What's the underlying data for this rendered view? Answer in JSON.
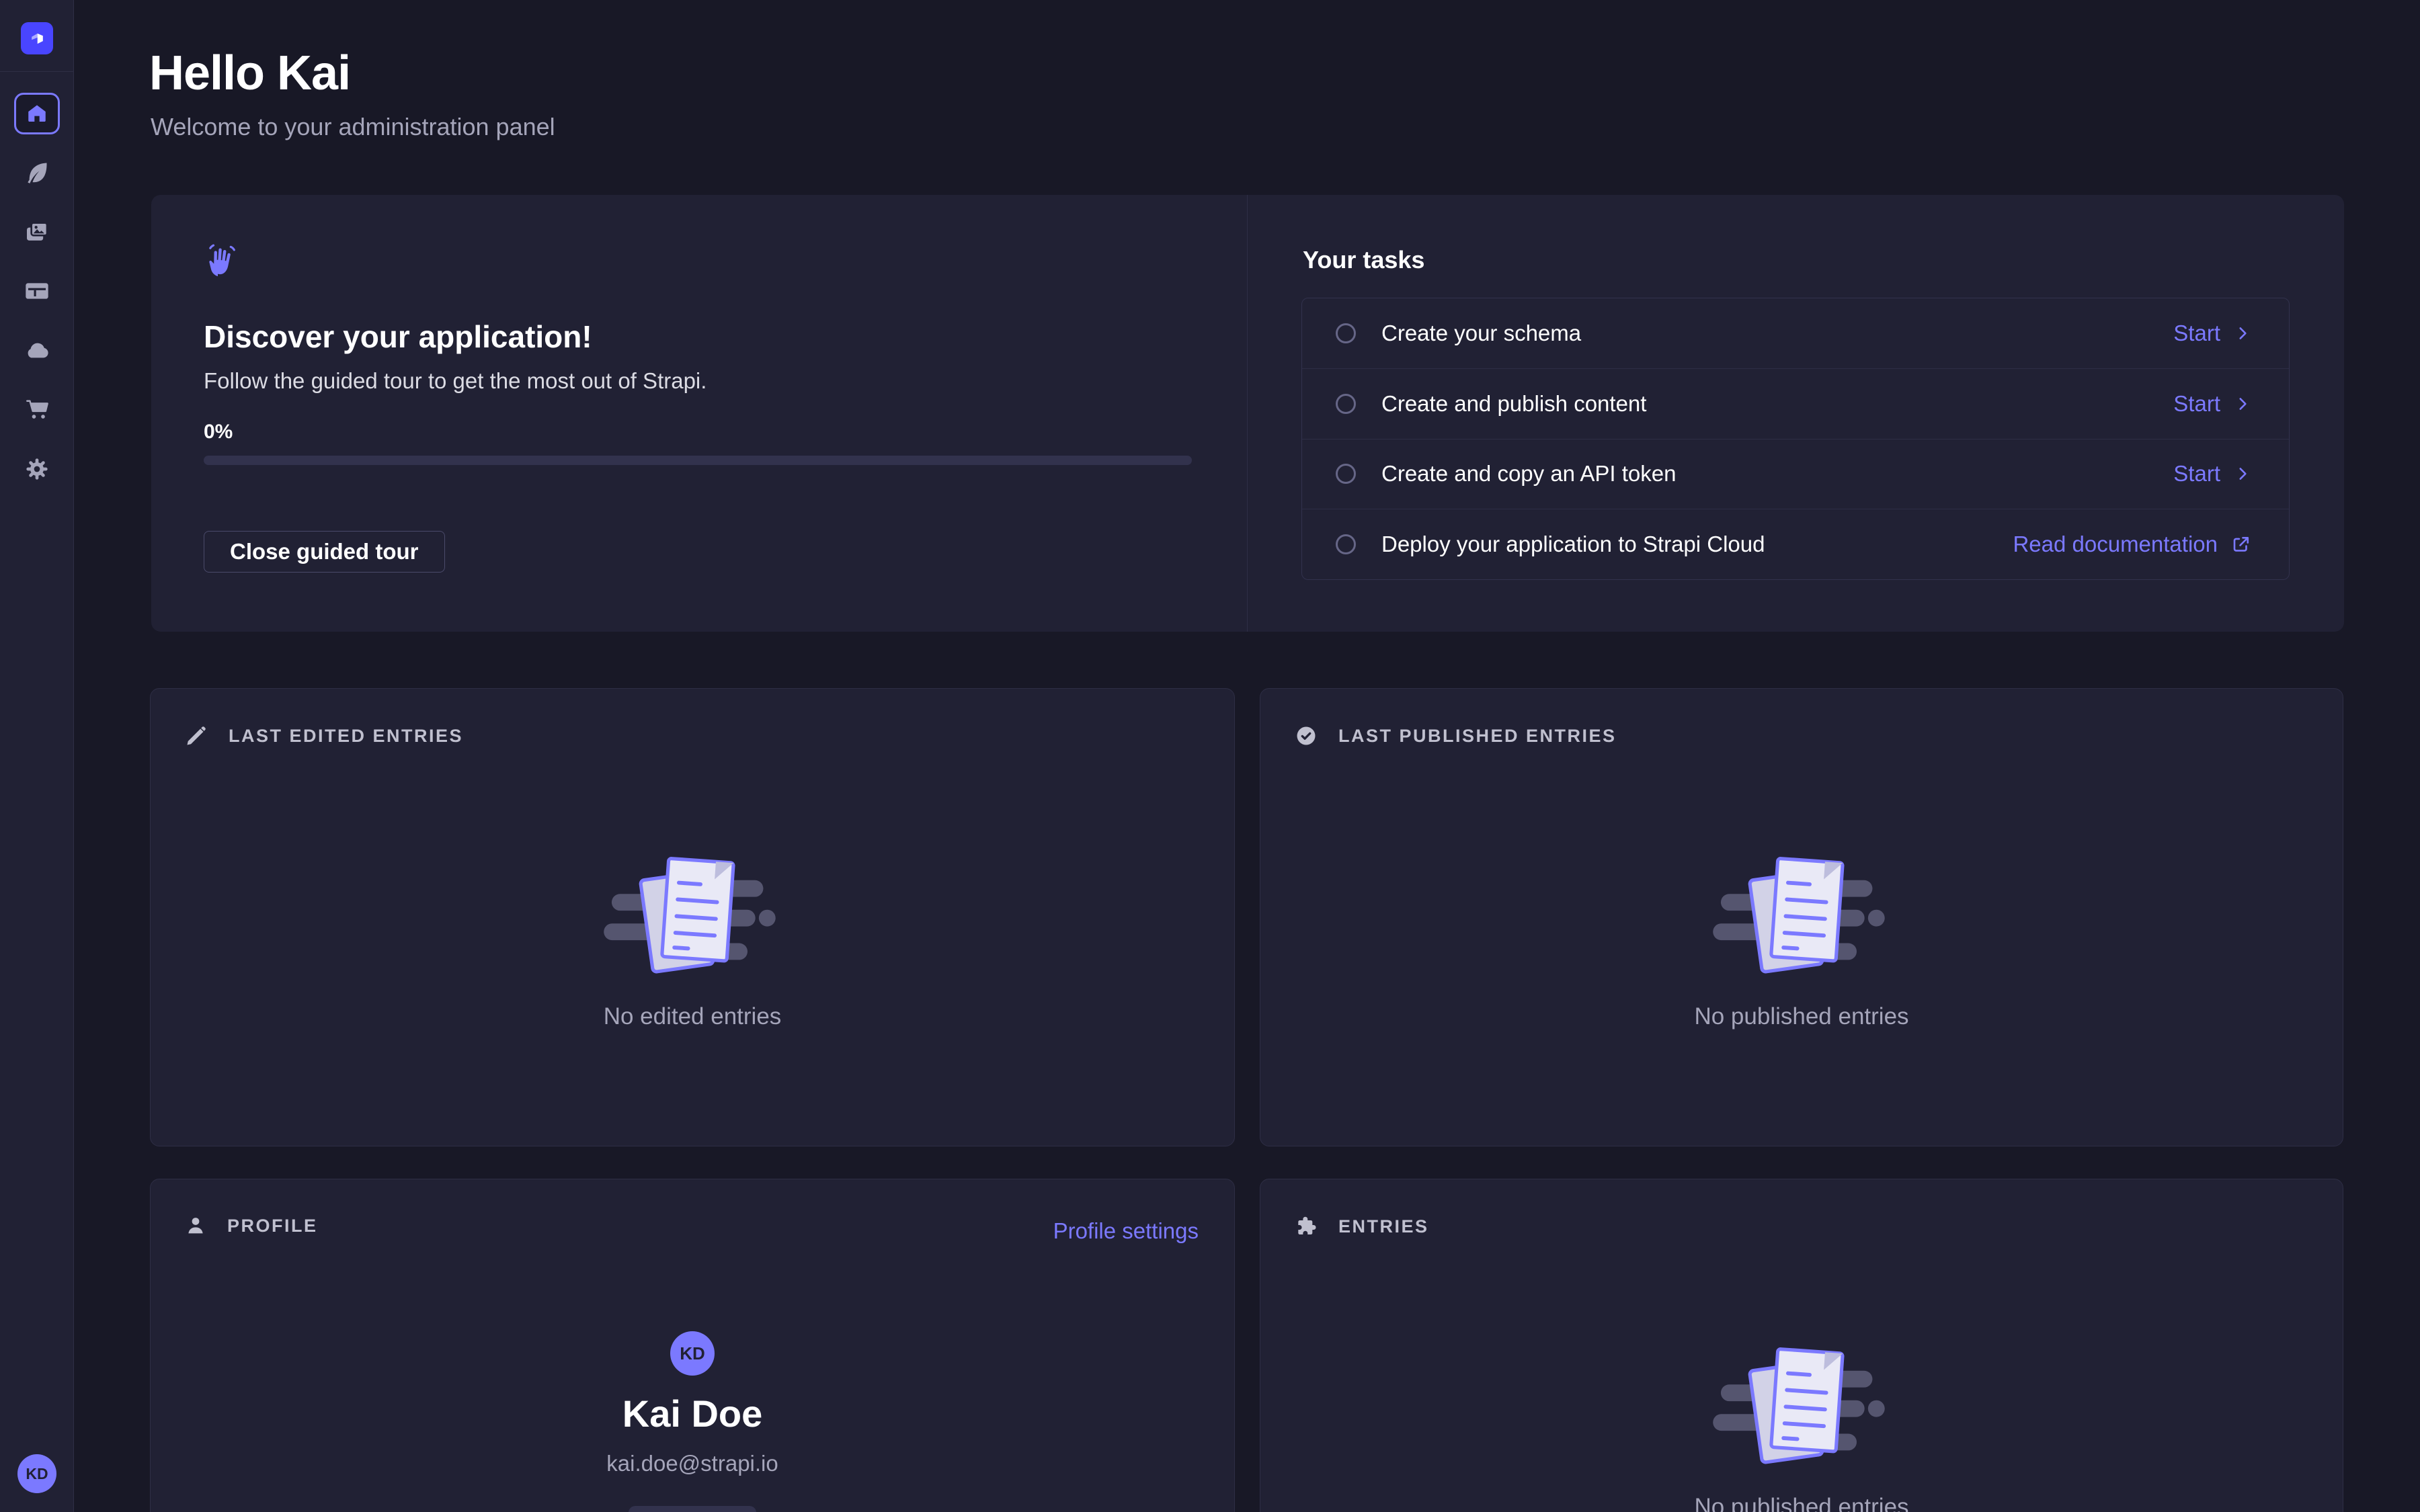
{
  "app": {
    "name": "Strapi administration panel"
  },
  "colors": {
    "page_background": "#181826",
    "surface": "#212134",
    "accent": "#4945ff",
    "link_purple": "#7b79ff",
    "text_secondary": "#a5a5ba",
    "border": "#2e2e45"
  },
  "sidebar": {
    "icons": [
      "strapi-logo",
      "home-icon",
      "content-manager-icon",
      "media-library-icon",
      "content-type-builder-icon",
      "cloud-icon",
      "marketplace-icon",
      "settings-icon"
    ],
    "avatar_initials": "KD"
  },
  "header": {
    "title": "Hello Kai",
    "subtitle": "Welcome to your administration panel"
  },
  "guided_tour": {
    "icon": "waving-hand-icon",
    "title": "Discover your application!",
    "description": "Follow the guided tour to get the most out of Strapi.",
    "progress_label": "0%",
    "progress_percent": 0,
    "close_button": "Close guided tour"
  },
  "tasks": {
    "title": "Your tasks",
    "items": [
      {
        "label": "Create your schema",
        "action": "Start",
        "action_icon": "chevron-right-icon"
      },
      {
        "label": "Create and publish content",
        "action": "Start",
        "action_icon": "chevron-right-icon"
      },
      {
        "label": "Create and copy an API token",
        "action": "Start",
        "action_icon": "chevron-right-icon"
      },
      {
        "label": "Deploy your application to Strapi Cloud",
        "action": "Read documentation",
        "action_icon": "external-link-icon"
      }
    ]
  },
  "widgets": {
    "last_edited": {
      "icon": "pencil-icon",
      "header": "Last edited entries",
      "empty": "No edited entries"
    },
    "last_published": {
      "icon": "check-circle-icon",
      "header": "Last published entries",
      "empty": "No published entries"
    },
    "profile": {
      "icon": "user-icon",
      "header": "Profile",
      "settings_link": "Profile settings",
      "initials": "KD",
      "name": "Kai Doe",
      "email": "kai.doe@strapi.io"
    },
    "entries": {
      "icon": "puzzle-icon",
      "header": "Entries",
      "empty": "No published entries"
    }
  }
}
